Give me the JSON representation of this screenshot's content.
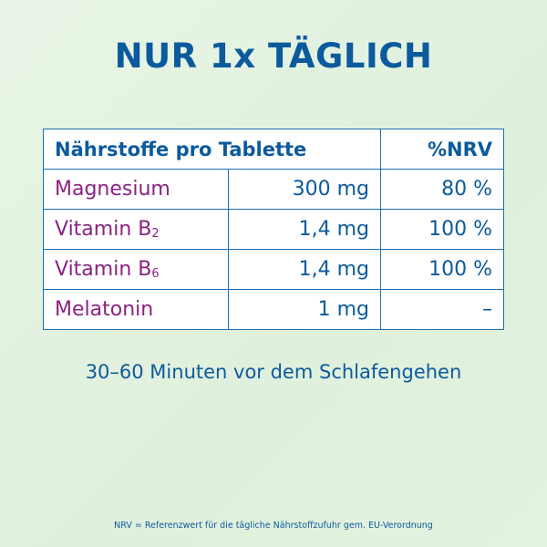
{
  "title": "NUR 1x TÄGLICH",
  "table": {
    "header": {
      "nutrients": "Nährstoffe pro Tablette",
      "nrv": "%NRV"
    },
    "rows": [
      {
        "name": "Magnesium",
        "sub": "",
        "amount": "300 mg",
        "nrv": "80 %"
      },
      {
        "name": "Vitamin B",
        "sub": "2",
        "amount": "1,4 mg",
        "nrv": "100 %"
      },
      {
        "name": "Vitamin B",
        "sub": "6",
        "amount": "1,4 mg",
        "nrv": "100 %"
      },
      {
        "name": "Melatonin",
        "sub": "",
        "amount": "1 mg",
        "nrv": "–"
      }
    ]
  },
  "note": "30–60 Minuten vor dem Schlafengehen",
  "footnote": "NRV = Referenzwert für die tägliche Nährstoffzufuhr gem. EU-Verordnung",
  "colors": {
    "blue": "#0b5a9d",
    "purple": "#8a2283",
    "background": "#e2f2df"
  }
}
